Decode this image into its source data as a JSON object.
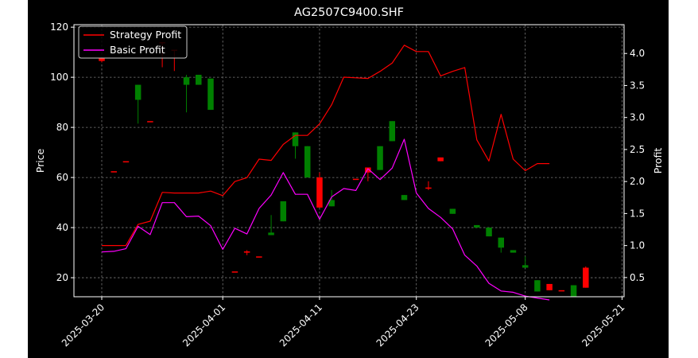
{
  "chart_data": {
    "type": "candlestick+line",
    "title": "AG2507C9400.SHF",
    "xlabel": "",
    "ylabel_left": "Price",
    "ylabel_right": "Profit",
    "ylim_left": [
      12.4,
      121.0
    ],
    "ylim_right": [
      0.2,
      4.45
    ],
    "yticks_left": [
      20,
      40,
      60,
      80,
      100,
      120
    ],
    "yticks_right": [
      0.5,
      1.0,
      1.5,
      2.0,
      2.5,
      3.0,
      3.5,
      4.0
    ],
    "xticks": [
      "2025-03-20",
      "2025-04-01",
      "2025-04-11",
      "2025-04-23",
      "2025-05-08",
      "2025-05-21"
    ],
    "xtick_index": [
      0,
      10,
      18,
      26,
      35,
      43
    ],
    "grid": true,
    "legend_position": "top-left",
    "colors": {
      "background": "#000000",
      "figure": "#ffffff",
      "axes_edge": "#ffffff",
      "grid": "#7a7a7a",
      "up": "#ff0000",
      "down": "#008000",
      "strategy": "#ff0000",
      "basic": "#ff00ff"
    },
    "candles": [
      {
        "open": 106.5,
        "close": 107.5,
        "high": 107.5,
        "low": 106.0
      },
      {
        "open": 62.5,
        "close": 62.5,
        "high": 62.5,
        "low": 62.5
      },
      {
        "open": 66.5,
        "close": 66.5,
        "high": 66.5,
        "low": 66.5
      },
      {
        "open": 97.0,
        "close": 91.0,
        "high": 97.0,
        "low": 81.5
      },
      {
        "open": 82.5,
        "close": 82.5,
        "high": 82.5,
        "low": 82.5
      },
      {
        "open": 114.0,
        "close": 114.0,
        "high": 114.0,
        "low": 104.0
      },
      {
        "open": 111.0,
        "close": 111.0,
        "high": 111.0,
        "low": 102.5
      },
      {
        "open": 100.0,
        "close": 97.0,
        "high": 101.0,
        "low": 86.0
      },
      {
        "open": 101.0,
        "close": 97.0,
        "high": 101.0,
        "low": 97.0
      },
      {
        "open": 99.5,
        "close": 87.0,
        "high": 99.5,
        "low": 87.0
      },
      {
        "open": 22.5,
        "close": 22.5,
        "high": 22.5,
        "low": 22.5
      },
      {
        "open": 30.0,
        "close": 30.5,
        "high": 31.0,
        "low": 29.0
      },
      {
        "open": 28.5,
        "close": 28.5,
        "high": 28.5,
        "low": 28.5
      },
      {
        "open": 38.0,
        "close": 37.0,
        "high": 45.0,
        "low": 37.0
      },
      {
        "open": 50.5,
        "close": 42.5,
        "high": 50.5,
        "low": 42.5
      },
      {
        "open": 78.0,
        "close": 72.5,
        "high": 78.0,
        "low": 67.5
      },
      {
        "open": 72.5,
        "close": 60.0,
        "high": 72.5,
        "low": 60.0
      },
      {
        "open": 48.0,
        "close": 60.0,
        "high": 62.0,
        "low": 48.0
      },
      {
        "open": 51.0,
        "close": 48.5,
        "high": 55.0,
        "low": 48.5
      },
      {
        "open": 59.5,
        "close": 59.5,
        "high": 59.5,
        "low": 59.5
      },
      {
        "open": 62.0,
        "close": 64.0,
        "high": 64.0,
        "low": 58.5
      },
      {
        "open": 72.5,
        "close": 63.0,
        "high": 72.5,
        "low": 63.0
      },
      {
        "open": 82.5,
        "close": 74.5,
        "high": 82.5,
        "low": 74.5
      },
      {
        "open": 53.0,
        "close": 51.0,
        "high": 53.0,
        "low": 51.0
      },
      {
        "open": 56.0,
        "close": 56.0,
        "high": 58.5,
        "low": 55.0
      },
      {
        "open": 66.5,
        "close": 68.0,
        "high": 68.0,
        "low": 66.5
      },
      {
        "open": 47.5,
        "close": 45.5,
        "high": 47.5,
        "low": 45.5
      },
      {
        "open": 41.0,
        "close": 40.0,
        "high": 41.0,
        "low": 40.0
      },
      {
        "open": 40.0,
        "close": 36.5,
        "high": 40.0,
        "low": 36.5
      },
      {
        "open": 36.0,
        "close": 32.0,
        "high": 36.0,
        "low": 30.0
      },
      {
        "open": 31.0,
        "close": 30.0,
        "high": 31.0,
        "low": 30.0
      },
      {
        "open": 25.0,
        "close": 24.0,
        "high": 28.5,
        "low": 24.0
      },
      {
        "open": 19.0,
        "close": 14.5,
        "high": 19.0,
        "low": 14.5
      },
      {
        "open": 15.0,
        "close": 17.5,
        "high": 17.5,
        "low": 15.0
      },
      {
        "open": 15.0,
        "close": 15.0,
        "high": 15.0,
        "low": 15.0
      },
      {
        "open": 17.0,
        "close": 12.5,
        "high": 17.0,
        "low": 12.5
      },
      {
        "open": 16.0,
        "close": 24.0,
        "high": 24.5,
        "low": 16.0
      }
    ],
    "candle_x": [
      0,
      1,
      2,
      3,
      4,
      5,
      6,
      7,
      8,
      9,
      11,
      12,
      13,
      14,
      15,
      16,
      17,
      18,
      19,
      21,
      22,
      23,
      24,
      25,
      27,
      28,
      29,
      31,
      32,
      33,
      34,
      35,
      36,
      37,
      38,
      39,
      40
    ],
    "series": [
      {
        "name": "Strategy Profit",
        "color": "#ff0000",
        "values": [
          1.0,
          1.0,
          1.0,
          1.33,
          1.38,
          1.83,
          1.82,
          1.82,
          1.82,
          1.85,
          1.78,
          2.0,
          2.06,
          2.35,
          2.33,
          2.58,
          2.72,
          2.72,
          2.9,
          3.2,
          3.63,
          3.62,
          3.61,
          3.72,
          3.85,
          4.13,
          4.03,
          4.03,
          3.65,
          3.72,
          3.78,
          2.65,
          2.32,
          3.05,
          2.35,
          2.17,
          2.28,
          2.28
        ]
      },
      {
        "name": "Basic Profit",
        "color": "#ff00ff",
        "values": [
          0.9,
          0.91,
          0.95,
          1.3,
          1.17,
          1.67,
          1.67,
          1.45,
          1.46,
          1.31,
          0.94,
          1.27,
          1.18,
          1.58,
          1.79,
          2.14,
          1.8,
          1.8,
          1.41,
          1.76,
          1.89,
          1.86,
          2.2,
          2.03,
          2.21,
          2.66,
          1.82,
          1.58,
          1.44,
          1.26,
          0.85,
          0.68,
          0.41,
          0.29,
          0.27,
          0.21,
          0.18,
          0.15
        ]
      }
    ]
  }
}
